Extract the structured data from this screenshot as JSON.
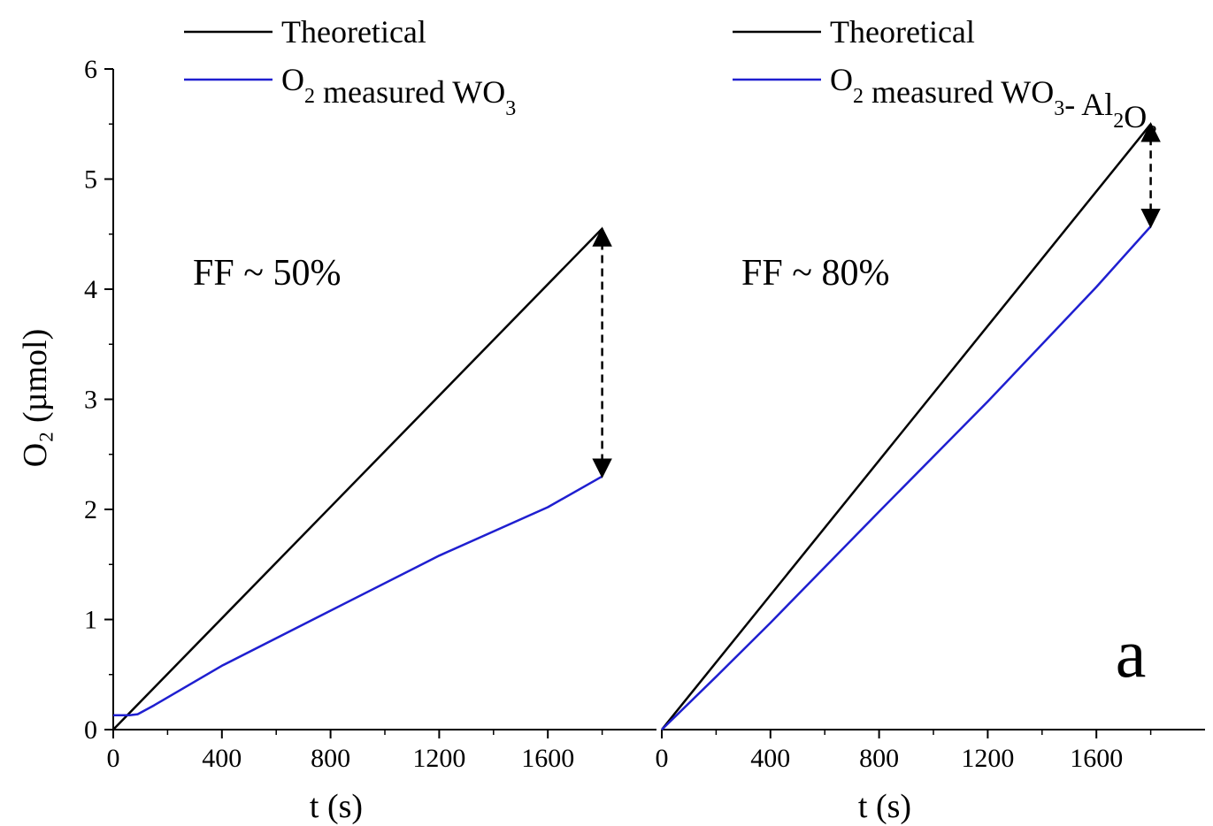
{
  "chart_data": {
    "type": "line",
    "ylabel": "O₂ (µmol)",
    "ylim": [
      0,
      6
    ],
    "yticks": [
      "0",
      "1",
      "2",
      "3",
      "4",
      "5",
      "6"
    ],
    "panel_label": "a",
    "colors": {
      "theoretical": "#000000",
      "measured": "#1f1fd0"
    },
    "panels": [
      {
        "xlabel": "t (s)",
        "xlim": [
          0,
          2000
        ],
        "xticks": [
          "0",
          "400",
          "800",
          "1200",
          "1600"
        ],
        "annotation": "FF ~ 50%",
        "legend": [
          {
            "key": "theoretical",
            "parts": [
              {
                "t": "Theoretical"
              }
            ]
          },
          {
            "key": "measured",
            "parts": [
              {
                "t": "O"
              },
              {
                "t": "2",
                "sub": true
              },
              {
                "t": " measured WO"
              },
              {
                "t": "3",
                "sub": true
              }
            ]
          }
        ],
        "series": [
          {
            "key": "theoretical",
            "x": [
              0,
              1800
            ],
            "y": [
              0,
              4.55
            ]
          },
          {
            "key": "measured",
            "x": [
              0,
              60,
              90,
              150,
              400,
              800,
              1200,
              1600,
              1800
            ],
            "y": [
              0.13,
              0.13,
              0.14,
              0.22,
              0.58,
              1.08,
              1.58,
              2.02,
              2.3
            ]
          }
        ],
        "arrow": {
          "x": 1800,
          "y_from": 4.55,
          "y_to": 2.3
        }
      },
      {
        "xlabel": "t (s)",
        "xlim": [
          0,
          2000
        ],
        "xticks": [
          "0",
          "400",
          "800",
          "1200",
          "1600"
        ],
        "annotation": "FF ~ 80%",
        "legend": [
          {
            "key": "theoretical",
            "parts": [
              {
                "t": "Theoretical"
              }
            ]
          },
          {
            "key": "measured",
            "parts": [
              {
                "t": "O"
              },
              {
                "t": "2",
                "sub": true
              },
              {
                "t": " measured WO"
              },
              {
                "t": "3",
                "sub": true
              },
              {
                "t": "- Al"
              },
              {
                "t": "2",
                "sub": true
              },
              {
                "t": "O"
              },
              {
                "t": "3",
                "sub": true
              }
            ]
          }
        ],
        "series": [
          {
            "key": "theoretical",
            "x": [
              0,
              1800
            ],
            "y": [
              0,
              5.5
            ]
          },
          {
            "key": "measured",
            "x": [
              0,
              200,
              400,
              800,
              1200,
              1600,
              1800
            ],
            "y": [
              0,
              0.48,
              0.97,
              1.98,
              2.98,
              4.02,
              4.57
            ]
          }
        ],
        "arrow": {
          "x": 1800,
          "y_from": 5.5,
          "y_to": 4.57
        }
      }
    ]
  }
}
